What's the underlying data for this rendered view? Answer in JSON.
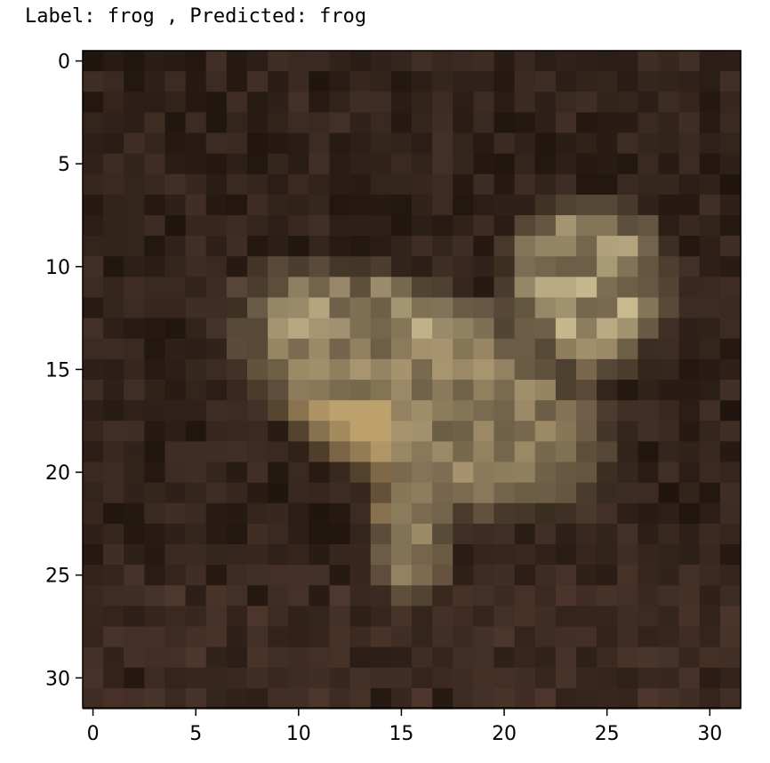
{
  "title": {
    "label_text": "Label: frog , Predicted: frog"
  },
  "image": {
    "description_size": [
      32,
      32
    ],
    "x_ticks": [
      "0",
      "5",
      "10",
      "15",
      "20",
      "25",
      "30"
    ],
    "y_ticks": [
      "0",
      "5",
      "10",
      "15",
      "20",
      "25",
      "30"
    ],
    "tick_values": [
      0,
      5,
      10,
      15,
      20,
      25,
      30
    ],
    "background_color": "#2b1f1c",
    "subject": "frog",
    "palette": {
      "dark": "#21160f",
      "brown": "#4a362c",
      "olive": "#6a5c45",
      "tan": "#a99670",
      "light": "#c9b98f",
      "yellow": "#c9a86a"
    }
  }
}
